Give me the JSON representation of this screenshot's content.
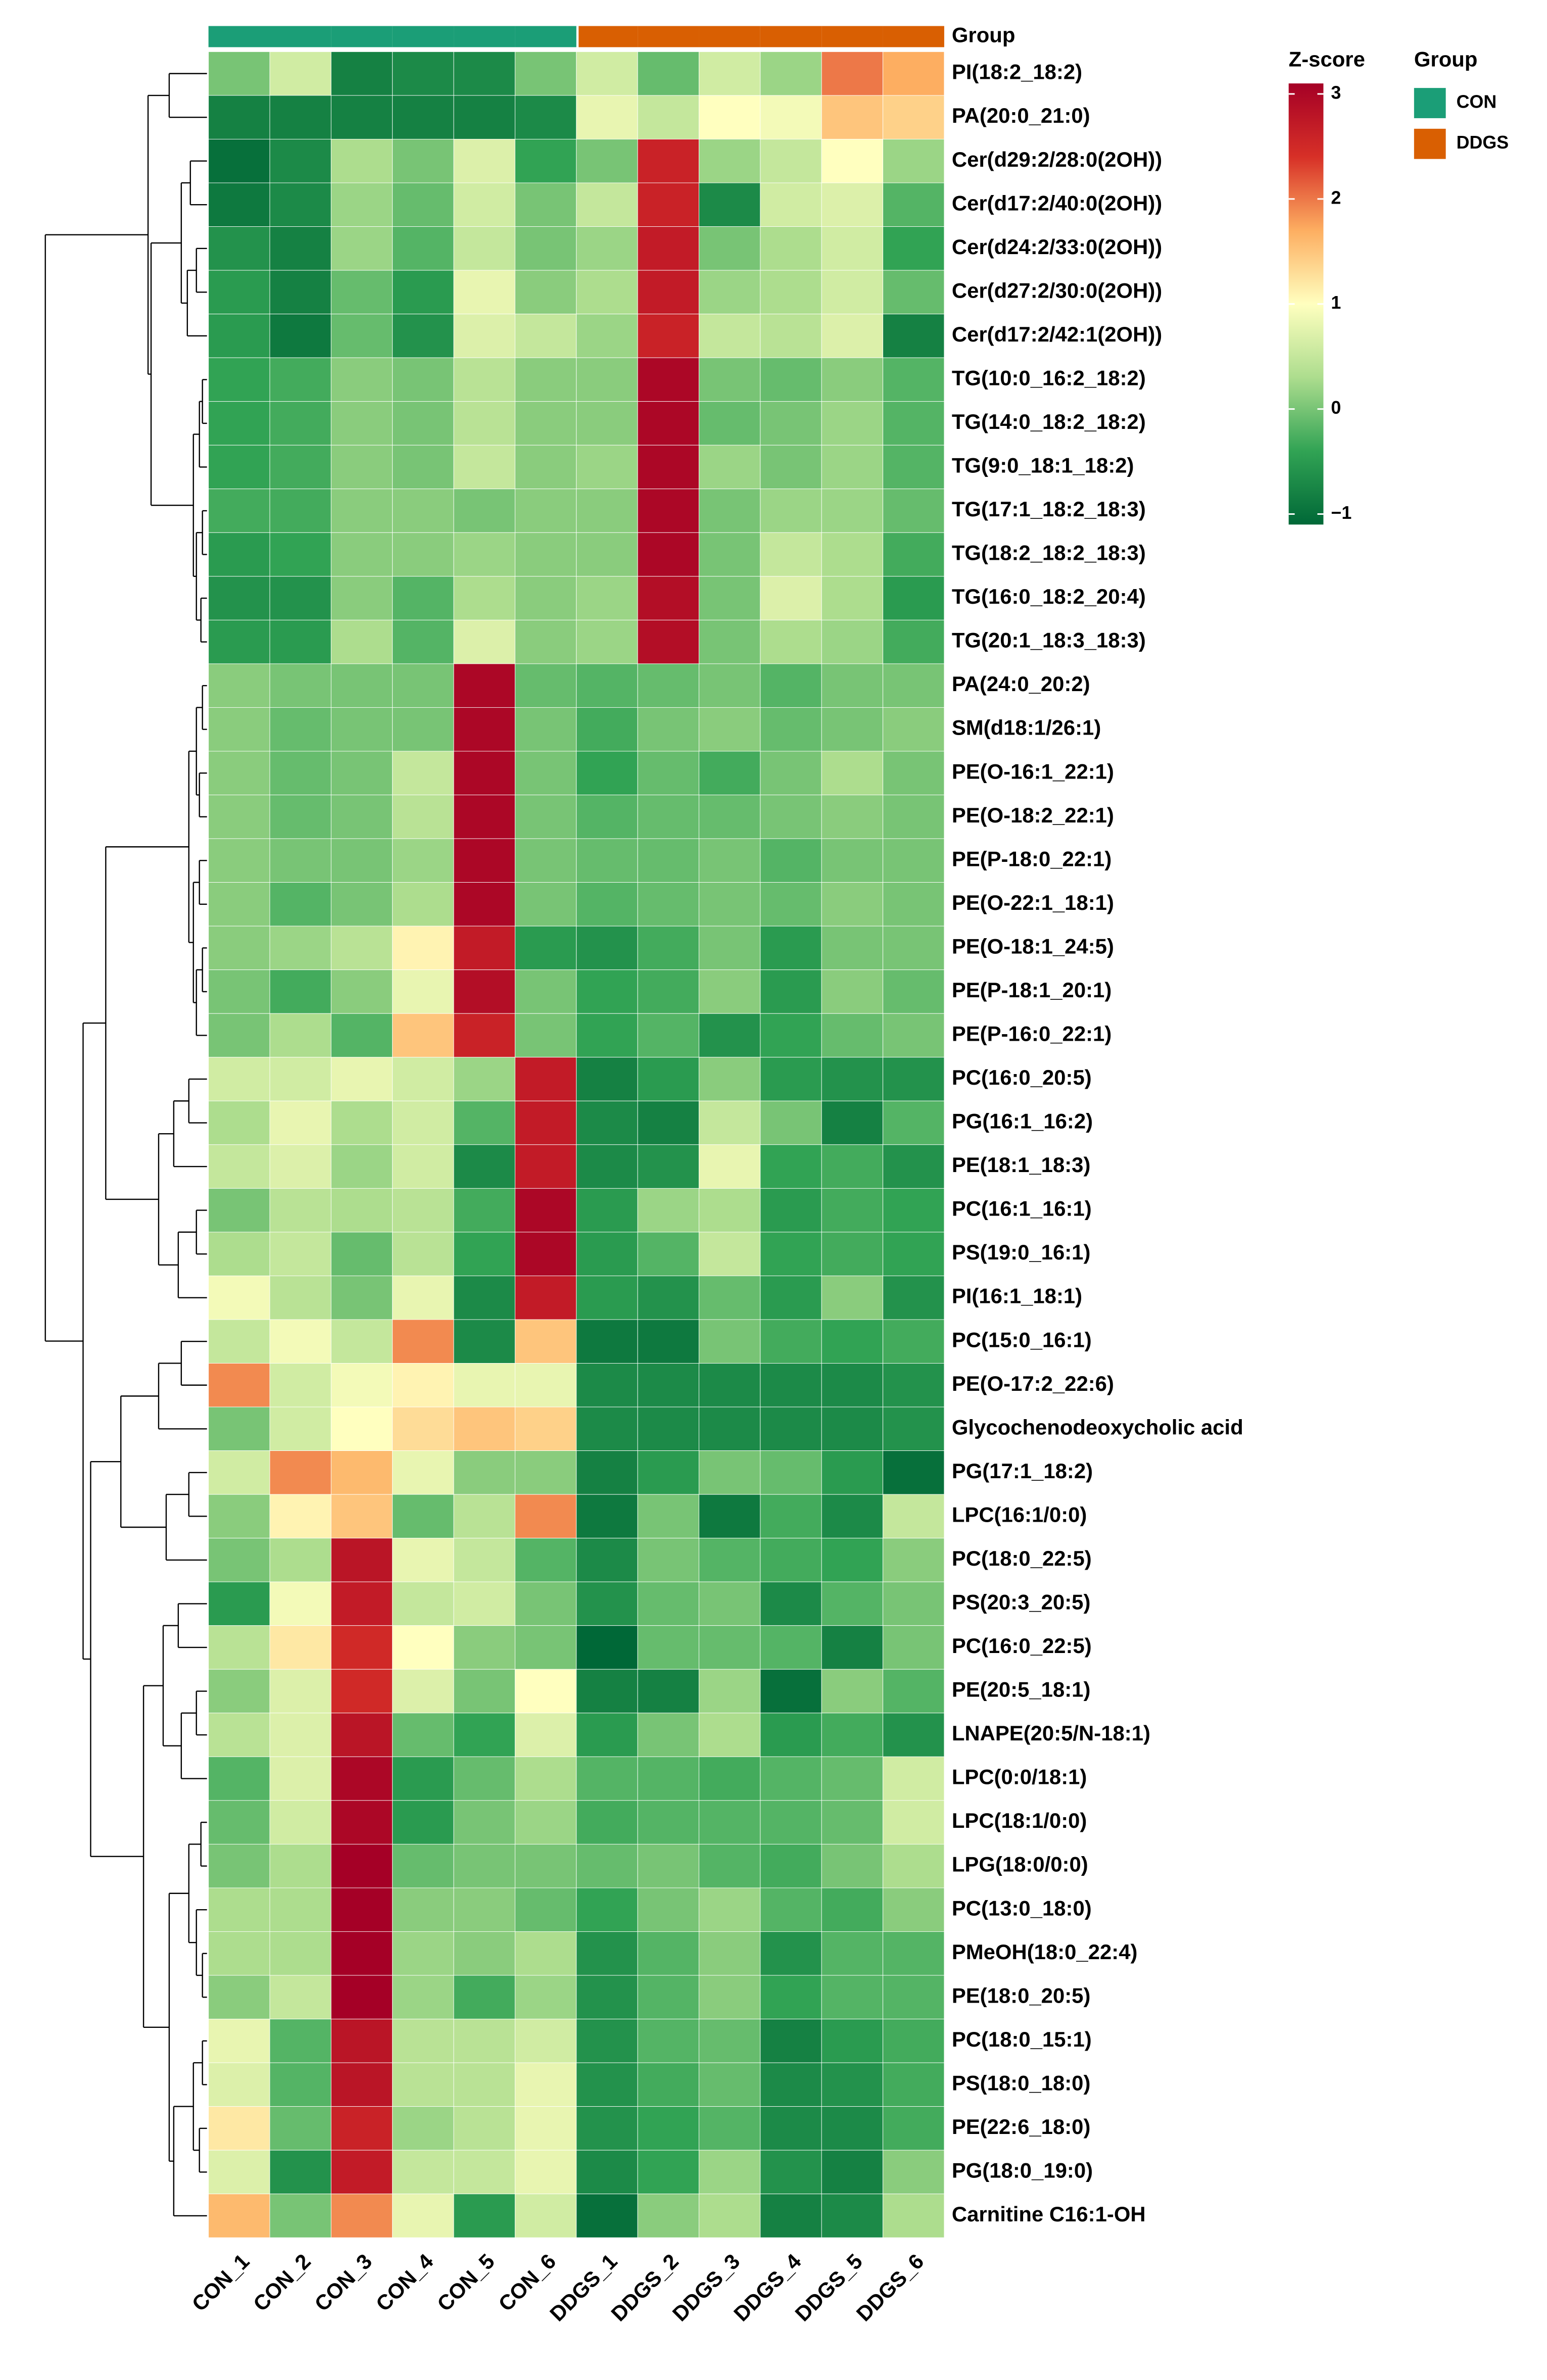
{
  "chart_data": {
    "type": "heatmap",
    "columns": [
      "CON_1",
      "CON_2",
      "CON_3",
      "CON_4",
      "CON_5",
      "CON_6",
      "DDGS_1",
      "DDGS_2",
      "DDGS_3",
      "DDGS_4",
      "DDGS_5",
      "DDGS_6"
    ],
    "column_groups": [
      "CON",
      "CON",
      "CON",
      "CON",
      "CON",
      "CON",
      "DDGS",
      "DDGS",
      "DDGS",
      "DDGS",
      "DDGS",
      "DDGS"
    ],
    "rows": [
      "PI(18:2_18:2)",
      "PA(20:0_21:0)",
      "Cer(d29:2/28:0(2OH))",
      "Cer(d17:2/40:0(2OH))",
      "Cer(d24:2/33:0(2OH))",
      "Cer(d27:2/30:0(2OH))",
      "Cer(d17:2/42:1(2OH))",
      "TG(10:0_16:2_18:2)",
      "TG(14:0_18:2_18:2)",
      "TG(9:0_18:1_18:2)",
      "TG(17:1_18:2_18:3)",
      "TG(18:2_18:2_18:3)",
      "TG(16:0_18:2_20:4)",
      "TG(20:1_18:3_18:3)",
      "PA(24:0_20:2)",
      "SM(d18:1/26:1)",
      "PE(O-16:1_22:1)",
      "PE(O-18:2_22:1)",
      "PE(P-18:0_22:1)",
      "PE(O-22:1_18:1)",
      "PE(O-18:1_24:5)",
      "PE(P-18:1_20:1)",
      "PE(P-16:0_22:1)",
      "PC(16:0_20:5)",
      "PG(16:1_16:2)",
      "PE(18:1_18:3)",
      "PC(16:1_16:1)",
      "PS(19:0_16:1)",
      "PI(16:1_18:1)",
      "PC(15:0_16:1)",
      "PE(O-17:2_22:6)",
      "Glycochenodeoxycholic acid",
      "PG(17:1_18:2)",
      "LPC(16:1/0:0)",
      "PC(18:0_22:5)",
      "PS(20:3_20:5)",
      "PC(16:0_22:5)",
      "PE(20:5_18:1)",
      "LNAPE(20:5/N-18:1)",
      "LPC(0:0/18:1)",
      "LPC(18:1/0:0)",
      "LPG(18:0/0:0)",
      "PC(13:0_18:0)",
      "PMeOH(18:0_22:4)",
      "PE(18:0_20:5)",
      "PC(18:0_15:1)",
      "PS(18:0_18:0)",
      "PE(22:6_18:0)",
      "PG(18:0_19:0)",
      "Carnitine C16:1-OH"
    ],
    "values": [
      [
        0,
        0.6,
        -0.8,
        -0.7,
        -0.7,
        0,
        0.6,
        -0.1,
        0.6,
        0.2,
        2.0,
        1.7
      ],
      [
        -0.8,
        -0.8,
        -0.8,
        -0.8,
        -0.8,
        -0.7,
        0.8,
        0.5,
        1.0,
        0.9,
        1.5,
        1.4
      ],
      [
        -1.0,
        -0.7,
        0.3,
        0,
        0.7,
        -0.4,
        0,
        2.6,
        0.2,
        0.5,
        1.0,
        0.2
      ],
      [
        -0.9,
        -0.7,
        0.2,
        -0.1,
        0.6,
        0,
        0.5,
        2.6,
        -0.7,
        0.6,
        0.7,
        -0.2
      ],
      [
        -0.6,
        -0.8,
        0.2,
        -0.2,
        0.5,
        0,
        0.2,
        2.7,
        0,
        0.3,
        0.6,
        -0.4
      ],
      [
        -0.5,
        -0.8,
        -0.1,
        -0.5,
        0.8,
        0.1,
        0.3,
        2.7,
        0.2,
        0.3,
        0.6,
        -0.1
      ],
      [
        -0.5,
        -0.9,
        -0.1,
        -0.6,
        0.7,
        0.5,
        0.2,
        2.6,
        0.5,
        0.4,
        0.7,
        -0.8
      ],
      [
        -0.4,
        -0.3,
        0.1,
        0,
        0.4,
        0.1,
        0.1,
        3.0,
        0,
        -0.1,
        0.1,
        -0.2
      ],
      [
        -0.4,
        -0.3,
        0.1,
        0,
        0.4,
        0.1,
        0.1,
        3.0,
        -0.1,
        0,
        0.2,
        -0.2
      ],
      [
        -0.4,
        -0.3,
        0.1,
        0,
        0.5,
        0.1,
        0.2,
        3.0,
        0.2,
        0,
        0.2,
        -0.2
      ],
      [
        -0.3,
        -0.3,
        0.1,
        0.1,
        0,
        0.1,
        0.1,
        3.0,
        0,
        0.2,
        0.2,
        -0.1
      ],
      [
        -0.5,
        -0.4,
        0.1,
        0.1,
        0.2,
        0.1,
        0.1,
        3.0,
        0,
        0.5,
        0.3,
        -0.3
      ],
      [
        -0.6,
        -0.6,
        0.1,
        -0.2,
        0.3,
        0.1,
        0.2,
        2.9,
        0,
        0.7,
        0.3,
        -0.5
      ],
      [
        -0.5,
        -0.5,
        0.3,
        -0.2,
        0.7,
        0.1,
        0.2,
        2.9,
        0,
        0.3,
        0.2,
        -0.3
      ],
      [
        0.1,
        0,
        0,
        0,
        3.0,
        -0.1,
        -0.2,
        -0.1,
        0,
        -0.2,
        0,
        0
      ],
      [
        0.1,
        -0.1,
        0,
        0,
        3.0,
        0,
        -0.3,
        0,
        0.1,
        -0.1,
        0,
        0.1
      ],
      [
        0.1,
        -0.1,
        0,
        0.5,
        3.0,
        0,
        -0.4,
        -0.1,
        -0.3,
        0,
        0.3,
        0
      ],
      [
        0.1,
        -0.1,
        0,
        0.4,
        3.0,
        0,
        -0.2,
        -0.1,
        -0.1,
        0,
        0.1,
        0
      ],
      [
        0.1,
        0,
        0,
        0.2,
        3.0,
        0,
        -0.1,
        -0.1,
        0,
        -0.2,
        0,
        0
      ],
      [
        0.1,
        -0.2,
        0,
        0.3,
        3.0,
        0,
        -0.2,
        -0.1,
        0,
        -0.1,
        0.1,
        0
      ],
      [
        0.1,
        0.2,
        0.4,
        1.1,
        2.7,
        -0.5,
        -0.6,
        -0.3,
        0,
        -0.5,
        0,
        0
      ],
      [
        0,
        -0.3,
        0.1,
        0.8,
        2.9,
        0,
        -0.4,
        -0.3,
        0.1,
        -0.5,
        0.1,
        -0.1
      ],
      [
        0,
        0.3,
        -0.2,
        1.5,
        2.6,
        0,
        -0.4,
        -0.2,
        -0.6,
        -0.4,
        -0.1,
        0
      ],
      [
        0.6,
        0.6,
        0.8,
        0.6,
        0.2,
        2.7,
        -0.8,
        -0.5,
        0.1,
        -0.5,
        -0.6,
        -0.6
      ],
      [
        0.3,
        0.8,
        0.3,
        0.6,
        -0.2,
        2.7,
        -0.7,
        -0.8,
        0.5,
        0,
        -0.8,
        -0.2
      ],
      [
        0.5,
        0.7,
        0.2,
        0.6,
        -0.7,
        2.7,
        -0.7,
        -0.6,
        0.8,
        -0.4,
        -0.3,
        -0.6
      ],
      [
        0,
        0.4,
        0.3,
        0.4,
        -0.3,
        3.0,
        -0.5,
        0.2,
        0.3,
        -0.5,
        -0.3,
        -0.4
      ],
      [
        0.3,
        0.5,
        -0.1,
        0.4,
        -0.4,
        3.0,
        -0.5,
        -0.2,
        0.5,
        -0.4,
        -0.3,
        -0.4
      ],
      [
        0.9,
        0.4,
        0,
        0.8,
        -0.7,
        2.7,
        -0.5,
        -0.6,
        -0.1,
        -0.5,
        0.1,
        -0.6
      ],
      [
        0.5,
        0.9,
        0.5,
        1.9,
        -0.7,
        1.5,
        -0.9,
        -0.9,
        0,
        -0.3,
        -0.4,
        -0.3
      ],
      [
        1.9,
        0.6,
        0.9,
        1.1,
        0.8,
        0.8,
        -0.7,
        -0.7,
        -0.7,
        -0.7,
        -0.7,
        -0.6
      ],
      [
        0,
        0.6,
        1.0,
        1.3,
        1.5,
        1.4,
        -0.7,
        -0.7,
        -0.7,
        -0.7,
        -0.7,
        -0.6
      ],
      [
        0.6,
        1.9,
        1.6,
        0.8,
        0.1,
        0.1,
        -0.8,
        -0.5,
        0,
        -0.1,
        -0.5,
        -1.0
      ],
      [
        0.1,
        1.1,
        1.5,
        -0.1,
        0.4,
        1.9,
        -0.9,
        0,
        -0.9,
        -0.3,
        -0.7,
        0.5
      ],
      [
        0,
        0.3,
        2.8,
        0.8,
        0.5,
        -0.2,
        -0.7,
        0,
        -0.2,
        -0.3,
        -0.4,
        0.1
      ],
      [
        -0.5,
        0.9,
        2.7,
        0.5,
        0.6,
        0,
        -0.6,
        -0.1,
        0,
        -0.7,
        -0.2,
        0
      ],
      [
        0.4,
        1.2,
        2.5,
        1.0,
        0.1,
        0,
        -1.1,
        -0.1,
        -0.1,
        -0.2,
        -0.8,
        0
      ],
      [
        0.1,
        0.7,
        2.5,
        0.7,
        0,
        1.0,
        -0.8,
        -0.8,
        0.2,
        -1.0,
        0.1,
        -0.2
      ],
      [
        0.4,
        0.7,
        2.8,
        -0.1,
        -0.4,
        0.7,
        -0.5,
        0,
        0.3,
        -0.5,
        -0.3,
        -0.6
      ],
      [
        -0.2,
        0.7,
        3.0,
        -0.5,
        -0.1,
        0.3,
        -0.2,
        -0.2,
        -0.3,
        -0.2,
        -0.1,
        0.6
      ],
      [
        -0.1,
        0.6,
        3.0,
        -0.5,
        0,
        0.2,
        -0.3,
        -0.2,
        -0.2,
        -0.2,
        -0.1,
        0.6
      ],
      [
        0,
        0.3,
        3.1,
        -0.1,
        0,
        0,
        -0.1,
        0,
        -0.2,
        -0.3,
        0,
        0.3
      ],
      [
        0.3,
        0.3,
        3.1,
        0.1,
        0.1,
        -0.1,
        -0.4,
        0,
        0.2,
        -0.2,
        -0.3,
        0.1
      ],
      [
        0.3,
        0.3,
        3.1,
        0.2,
        0.1,
        0.3,
        -0.6,
        -0.2,
        0.1,
        -0.6,
        -0.2,
        -0.2
      ],
      [
        0.1,
        0.5,
        3.1,
        0.2,
        -0.3,
        0.2,
        -0.6,
        -0.2,
        0.1,
        -0.4,
        -0.2,
        -0.2
      ],
      [
        0.8,
        -0.2,
        2.8,
        0.4,
        0.4,
        0.6,
        -0.6,
        -0.2,
        -0.1,
        -0.8,
        -0.5,
        -0.3
      ],
      [
        0.7,
        -0.2,
        2.8,
        0.4,
        0.4,
        0.8,
        -0.6,
        -0.3,
        -0.1,
        -0.7,
        -0.6,
        -0.3
      ],
      [
        1.2,
        -0.1,
        2.6,
        0.2,
        0.4,
        0.8,
        -0.6,
        -0.4,
        -0.2,
        -0.7,
        -0.7,
        -0.3
      ],
      [
        0.7,
        -0.6,
        2.7,
        0.5,
        0.5,
        0.8,
        -0.7,
        -0.4,
        0.2,
        -0.6,
        -0.8,
        0.1
      ],
      [
        1.6,
        0,
        1.9,
        0.8,
        -0.5,
        0.6,
        -1.0,
        0.1,
        0.3,
        -0.8,
        -0.7,
        0.3
      ]
    ],
    "zlim": [
      -1.1,
      3.1
    ],
    "zticks": [
      {
        "value": -1,
        "label": "−1"
      },
      0,
      1,
      2,
      3
    ],
    "colors": [
      "#006837",
      "#31a354",
      "#addd8e",
      "#ffffbf",
      "#fdae61",
      "#d73027",
      "#a50026"
    ],
    "colorbar_title": "Z-score",
    "group_label": "Group",
    "group_legend": {
      "title": "Group",
      "items": [
        {
          "name": "CON",
          "color": "#1b9e77"
        },
        {
          "name": "DDGS",
          "color": "#d95f02"
        }
      ]
    }
  }
}
